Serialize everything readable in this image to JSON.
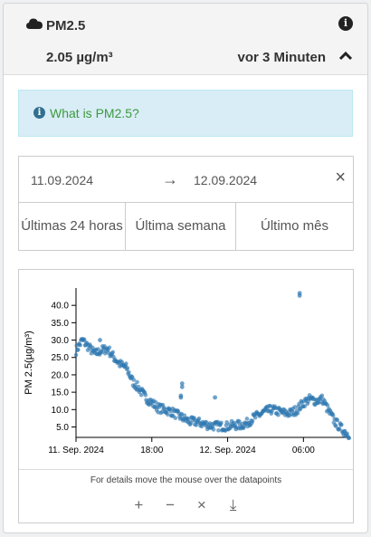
{
  "header": {
    "icon": "cloud-icon",
    "title": "PM2.5",
    "value": "2.05 µg/m³",
    "updated": "vor 3 Minuten"
  },
  "info_alert": {
    "text": "What is PM2.5?"
  },
  "date_range": {
    "from": "11.09.2024",
    "to": "12.09.2024",
    "presets": [
      "Últimas 24 horas",
      "Última semana",
      "Último mês"
    ]
  },
  "chart_footer": {
    "hint": "For details move the mouse over the datapoints",
    "tools": [
      "+",
      "−",
      "×",
      "⤓"
    ]
  },
  "chart_data": {
    "type": "scatter",
    "ylabel": "PM 2.5(µg/m³)",
    "ylim": [
      2,
      45
    ],
    "y_ticks": [
      "5.0",
      "10.0",
      "15.0",
      "20.0",
      "25.0",
      "30.0",
      "35.0",
      "40.0"
    ],
    "x_ticks": [
      "11. Sep. 2024",
      "18:00",
      "12. Sep. 2024",
      "06:00"
    ],
    "x_tick_hours": [
      0,
      6,
      12,
      18
    ],
    "xlim_hours": [
      0,
      21.7
    ],
    "color": "#2e78b0",
    "trend": [
      [
        0.0,
        27
      ],
      [
        0.5,
        30
      ],
      [
        1.0,
        28
      ],
      [
        1.5,
        26
      ],
      [
        2.0,
        27
      ],
      [
        2.5,
        27.5
      ],
      [
        3.0,
        25
      ],
      [
        3.5,
        23
      ],
      [
        4.0,
        22
      ],
      [
        4.5,
        18
      ],
      [
        5.0,
        16
      ],
      [
        5.5,
        13.5
      ],
      [
        6.0,
        12
      ],
      [
        6.5,
        10.5
      ],
      [
        7.0,
        10
      ],
      [
        7.5,
        9.5
      ],
      [
        8.0,
        8.5
      ],
      [
        8.5,
        7.5
      ],
      [
        9.0,
        6.5
      ],
      [
        9.5,
        6.5
      ],
      [
        10.0,
        6
      ],
      [
        10.5,
        5.5
      ],
      [
        11.0,
        5.3
      ],
      [
        11.5,
        5.2
      ],
      [
        12.0,
        5.2
      ],
      [
        12.5,
        5.5
      ],
      [
        13.0,
        5.5
      ],
      [
        13.5,
        6
      ],
      [
        14.0,
        7.5
      ],
      [
        14.5,
        8.5
      ],
      [
        15.0,
        9.5
      ],
      [
        15.5,
        10
      ],
      [
        16.0,
        9.5
      ],
      [
        16.5,
        9
      ],
      [
        17.0,
        9
      ],
      [
        17.5,
        10
      ],
      [
        18.0,
        12
      ],
      [
        18.5,
        13
      ],
      [
        19.0,
        12.5
      ],
      [
        19.5,
        13
      ],
      [
        20.0,
        9.5
      ],
      [
        20.5,
        6.5
      ],
      [
        21.0,
        4.5
      ],
      [
        21.5,
        3
      ]
    ],
    "outliers": [
      [
        17.7,
        43.5
      ],
      [
        17.7,
        42.8
      ],
      [
        8.4,
        17.5
      ],
      [
        8.4,
        16.5
      ],
      [
        8.3,
        14
      ],
      [
        8.3,
        13.5
      ],
      [
        11.0,
        13.5
      ],
      [
        1.9,
        30
      ]
    ]
  }
}
